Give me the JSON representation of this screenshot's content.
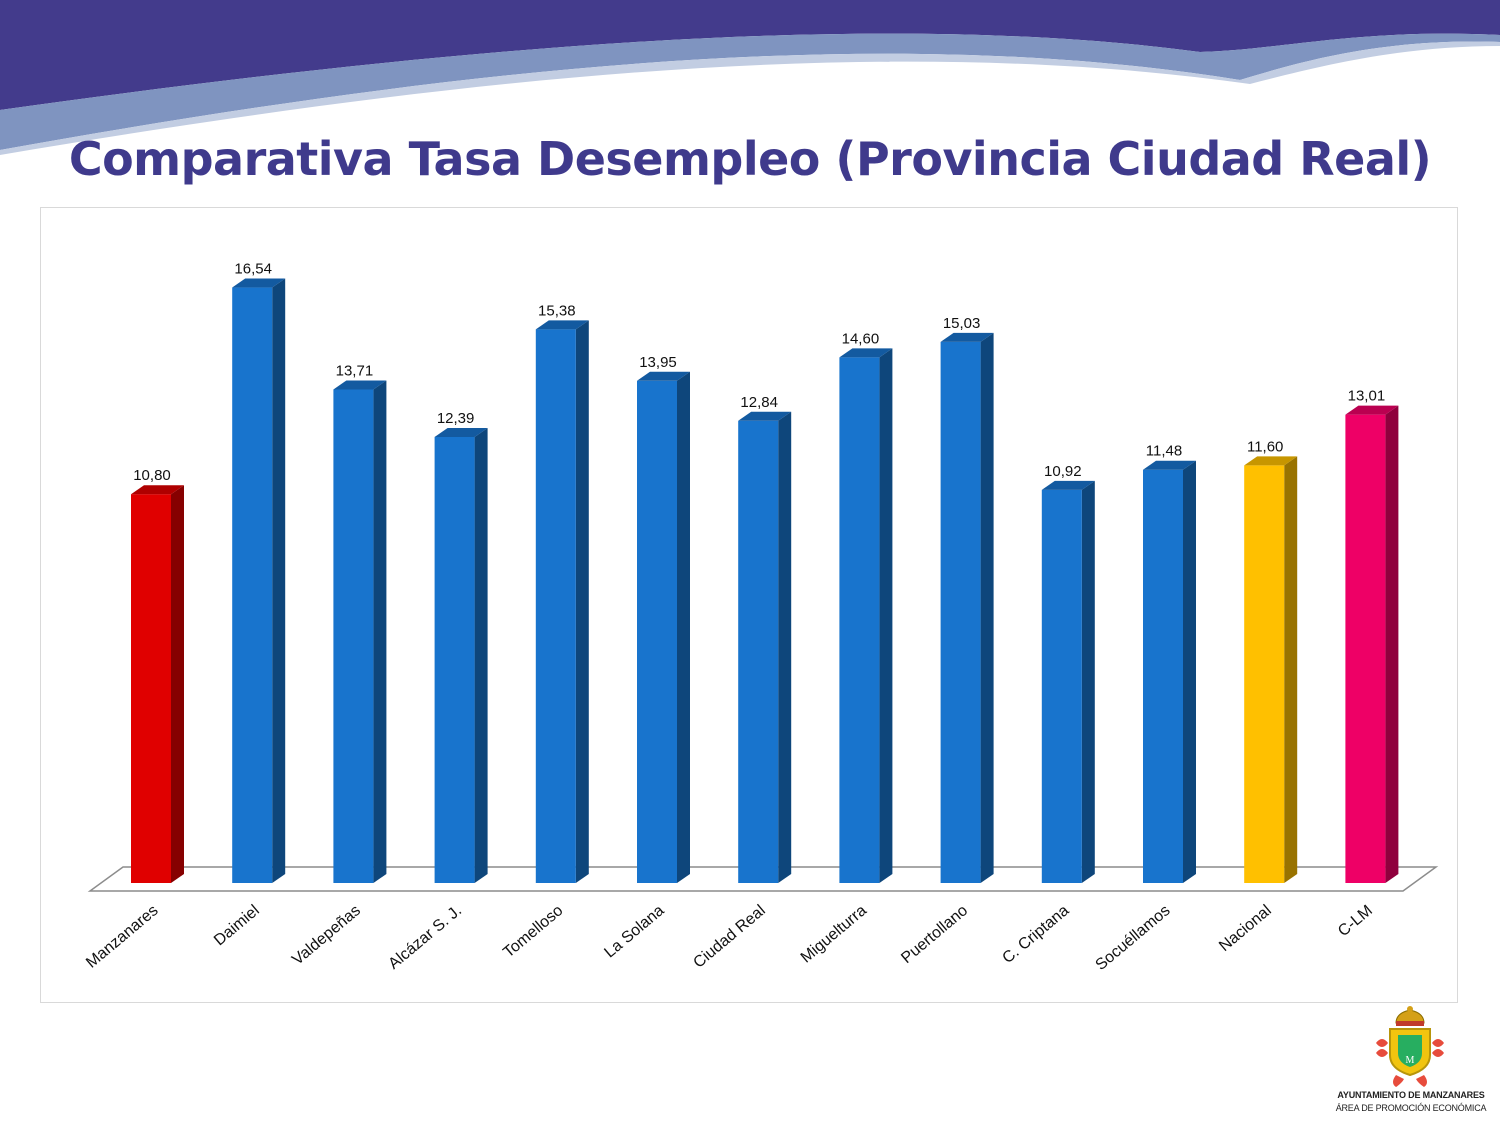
{
  "page": {
    "title": "Comparativa Tasa Desempleo (Provincia Ciudad Real)",
    "org_line1": "AYUNTAMIENTO DE MANZANARES",
    "org_line2": "ÁREA DE PROMOCIÓN ECONÓMICA",
    "logo_icon": "coat-of-arms-icon"
  },
  "colors": {
    "title": "#3f3a8c",
    "banner_dark": "#433b8c",
    "banner_light": "#8aa0c8",
    "highlight_local": "#e00000",
    "default_bar": "#1874cd",
    "national": "#ffc000",
    "regional": "#ee0066"
  },
  "chart_data": {
    "type": "bar",
    "style": "3d",
    "title": "",
    "xlabel": "",
    "ylabel": "",
    "ylim": [
      0,
      18
    ],
    "grid": false,
    "legend": "none",
    "categories": [
      "Manzanares",
      "Daimiel",
      "Valdepeñas",
      "Alcázar S. J.",
      "Tomelloso",
      "La Solana",
      "Ciudad Real",
      "Miguelturra",
      "Puertollano",
      "C. Criptana",
      "Socuéllamos",
      "Nacional",
      "C-LM"
    ],
    "values": [
      10.8,
      16.54,
      13.71,
      12.39,
      15.38,
      13.95,
      12.84,
      14.6,
      15.03,
      10.92,
      11.48,
      11.6,
      13.01
    ],
    "value_labels": [
      "10,80",
      "16,54",
      "13,71",
      "12,39",
      "15,38",
      "13,95",
      "12,84",
      "14,60",
      "15,03",
      "10,92",
      "11,48",
      "11,60",
      "13,01"
    ],
    "bar_colors": [
      "#e00000",
      "#1874cd",
      "#1874cd",
      "#1874cd",
      "#1874cd",
      "#1874cd",
      "#1874cd",
      "#1874cd",
      "#1874cd",
      "#1874cd",
      "#1874cd",
      "#ffc000",
      "#ee0066"
    ]
  }
}
